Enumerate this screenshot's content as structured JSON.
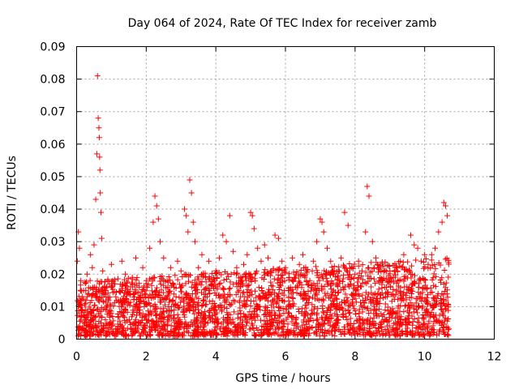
{
  "chart_data": {
    "type": "scatter",
    "title": "Day 064 of 2024, Rate Of TEC Index for receiver zamb",
    "xlabel": "GPS time / hours",
    "ylabel": "ROTI / TECUs",
    "xlim": [
      0,
      12
    ],
    "ylim": [
      0,
      0.09
    ],
    "x_ticks": [
      0,
      2,
      4,
      6,
      8,
      10,
      12
    ],
    "x_tick_labels": [
      "0",
      "2",
      "4",
      "6",
      "8",
      "10",
      "12"
    ],
    "y_ticks": [
      0,
      0.01,
      0.02,
      0.03,
      0.04,
      0.05,
      0.06,
      0.07,
      0.08,
      0.09
    ],
    "y_tick_labels": [
      "0",
      "0.01",
      "0.02",
      "0.03",
      "0.04",
      "0.05",
      "0.06",
      "0.07",
      "0.08",
      "0.09"
    ],
    "grid": true,
    "marker": "+",
    "marker_color": "#ff0000",
    "series": [
      {
        "name": "ROTI",
        "x": [
          0.02,
          0.05,
          0.08,
          0.1,
          0.12,
          0.15,
          0.2,
          0.25,
          0.3,
          0.35,
          0.4,
          0.45,
          0.5,
          0.55,
          0.58,
          0.6,
          0.62,
          0.64,
          0.65,
          0.66,
          0.67,
          0.68,
          0.7,
          0.72,
          0.75,
          0.8,
          0.85,
          0.9,
          1.0,
          1.1,
          1.2,
          1.3,
          1.4,
          1.5,
          1.6,
          1.7,
          1.8,
          1.9,
          2.0,
          2.1,
          2.2,
          2.25,
          2.3,
          2.35,
          2.4,
          2.5,
          2.6,
          2.7,
          2.8,
          2.9,
          3.0,
          3.1,
          3.15,
          3.2,
          3.25,
          3.3,
          3.35,
          3.4,
          3.5,
          3.6,
          3.7,
          3.8,
          3.9,
          4.0,
          4.1,
          4.2,
          4.3,
          4.4,
          4.5,
          4.6,
          4.7,
          4.8,
          4.9,
          5.0,
          5.05,
          5.1,
          5.2,
          5.3,
          5.4,
          5.5,
          5.6,
          5.7,
          5.8,
          5.9,
          6.0,
          6.1,
          6.2,
          6.3,
          6.4,
          6.5,
          6.6,
          6.7,
          6.8,
          6.9,
          7.0,
          7.05,
          7.1,
          7.2,
          7.3,
          7.4,
          7.5,
          7.6,
          7.7,
          7.8,
          7.9,
          8.0,
          8.1,
          8.2,
          8.3,
          8.35,
          8.4,
          8.5,
          8.6,
          8.7,
          8.8,
          8.9,
          9.0,
          9.1,
          9.2,
          9.3,
          9.4,
          9.5,
          9.6,
          9.7,
          9.8,
          9.9,
          10.0,
          10.1,
          10.2,
          10.3,
          10.4,
          10.5,
          10.55,
          10.6,
          10.65
        ],
        "y": [
          0.024,
          0.033,
          0.028,
          0.012,
          0.018,
          0.009,
          0.015,
          0.011,
          0.02,
          0.014,
          0.026,
          0.022,
          0.029,
          0.043,
          0.057,
          0.081,
          0.068,
          0.065,
          0.062,
          0.056,
          0.052,
          0.045,
          0.039,
          0.031,
          0.021,
          0.016,
          0.013,
          0.018,
          0.023,
          0.017,
          0.012,
          0.024,
          0.02,
          0.014,
          0.019,
          0.025,
          0.016,
          0.022,
          0.018,
          0.028,
          0.036,
          0.044,
          0.041,
          0.037,
          0.03,
          0.025,
          0.018,
          0.022,
          0.016,
          0.024,
          0.021,
          0.04,
          0.038,
          0.033,
          0.049,
          0.045,
          0.036,
          0.03,
          0.022,
          0.026,
          0.019,
          0.024,
          0.017,
          0.021,
          0.025,
          0.032,
          0.03,
          0.038,
          0.027,
          0.022,
          0.018,
          0.023,
          0.026,
          0.039,
          0.038,
          0.034,
          0.028,
          0.024,
          0.029,
          0.025,
          0.021,
          0.032,
          0.031,
          0.024,
          0.022,
          0.019,
          0.025,
          0.02,
          0.023,
          0.026,
          0.021,
          0.018,
          0.024,
          0.03,
          0.037,
          0.036,
          0.033,
          0.028,
          0.024,
          0.021,
          0.019,
          0.025,
          0.039,
          0.035,
          0.022,
          0.02,
          0.024,
          0.021,
          0.033,
          0.047,
          0.044,
          0.03,
          0.025,
          0.022,
          0.018,
          0.016,
          0.021,
          0.019,
          0.022,
          0.024,
          0.026,
          0.021,
          0.032,
          0.029,
          0.028,
          0.024,
          0.026,
          0.023,
          0.026,
          0.028,
          0.033,
          0.036,
          0.042,
          0.041,
          0.038
        ]
      }
    ],
    "dense_band": {
      "x_start": 0.02,
      "x_end": 10.7,
      "y_min": 0.001,
      "y_max": 0.022
    }
  }
}
